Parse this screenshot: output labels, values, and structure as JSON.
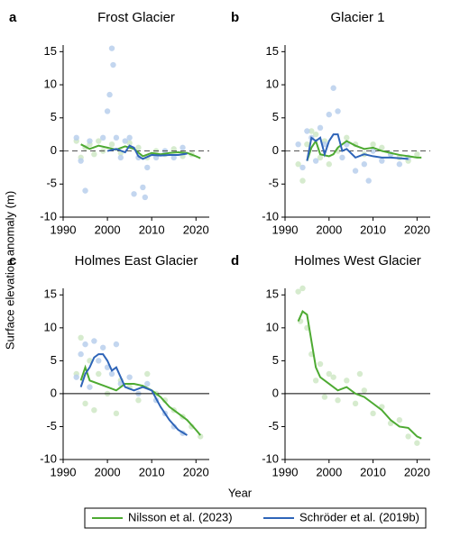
{
  "ylabel": "Surface elevation anomaly (m)",
  "xlabel": "Year",
  "chart_data": [
    {
      "type": "line",
      "letter": "a",
      "title": "Frost Glacier",
      "xlim": [
        1990,
        2023
      ],
      "ylim": [
        -10,
        16
      ],
      "xticks": [
        1990,
        2000,
        2010,
        2020
      ],
      "yticks": [
        -10,
        -5,
        0,
        5,
        10,
        15
      ],
      "zero_line": "dashed",
      "scatter": [
        {
          "color": "#cfe8c6",
          "x": [
            1993,
            1994,
            1995,
            1996,
            1997,
            1998,
            1999,
            2001,
            2003,
            2005,
            2007,
            2009,
            2011,
            2013,
            2015,
            2017,
            2019
          ],
          "values": [
            1.5,
            -1,
            0.5,
            1,
            -0.5,
            1.5,
            0,
            1,
            -0.3,
            1.2,
            0.5,
            -1,
            0,
            -0.5,
            0.3,
            -0.8,
            -0.5
          ]
        },
        {
          "color": "#b9cfec",
          "x": [
            1993,
            1994,
            1995,
            1996,
            1999,
            2000,
            2000.5,
            2001,
            2001.3,
            2002,
            2003,
            2004,
            2005,
            2006,
            2007,
            2008,
            2008.5,
            2009,
            2011,
            2013,
            2015,
            2017
          ],
          "values": [
            2,
            -1.5,
            -6,
            1.5,
            2,
            6,
            8.5,
            15.5,
            13,
            2,
            -1,
            1.5,
            2,
            -6.5,
            -1,
            -5.5,
            -7,
            -2.5,
            -1,
            0,
            -1,
            0.5
          ]
        }
      ],
      "series": [
        {
          "name": "Nilsson et al. (2023)",
          "color": "#4daa32",
          "x": [
            1994,
            1996,
            1998,
            2000,
            2002,
            2004,
            2006,
            2008,
            2010,
            2012,
            2014,
            2016,
            2018,
            2020,
            2021
          ],
          "values": [
            1,
            0.3,
            0.8,
            0.5,
            0.2,
            0.7,
            0.3,
            -0.8,
            -0.3,
            -0.5,
            -0.3,
            -0.2,
            -0.3,
            -0.8,
            -1.1
          ]
        },
        {
          "name": "Schröder et al. (2019b)",
          "color": "#2e64b8",
          "x": [
            2000,
            2002,
            2004,
            2005,
            2006,
            2007,
            2008,
            2010,
            2012,
            2014,
            2016,
            2018
          ],
          "values": [
            0,
            0.3,
            -0.2,
            0.8,
            0.5,
            -0.8,
            -1.2,
            -0.6,
            -0.7,
            -0.6,
            -0.6,
            -0.4
          ]
        }
      ]
    },
    {
      "type": "line",
      "letter": "b",
      "title": "Glacier 1",
      "xlim": [
        1990,
        2023
      ],
      "ylim": [
        -10,
        16
      ],
      "xticks": [
        1990,
        2000,
        2010,
        2020
      ],
      "yticks": [
        -10,
        -5,
        0,
        5,
        10,
        15
      ],
      "zero_line": "dashed",
      "scatter": [
        {
          "color": "#cfe8c6",
          "x": [
            1993,
            1994,
            1995,
            1996,
            1997,
            1998,
            1999,
            2000,
            2002,
            2004,
            2006,
            2008,
            2010,
            2012,
            2014,
            2016,
            2018,
            2020
          ],
          "values": [
            -2,
            -4.5,
            1,
            3,
            2.5,
            -1,
            1.5,
            -2,
            0,
            2,
            1,
            -0.5,
            1,
            0.5,
            -0.5,
            -1,
            -1.5,
            -0.5
          ]
        },
        {
          "color": "#b9cfec",
          "x": [
            1993,
            1994,
            1995,
            1996,
            1997,
            1998,
            1999,
            2000,
            2001,
            2002,
            2003,
            2004,
            2006,
            2008,
            2009,
            2010,
            2012,
            2014,
            2016,
            2018
          ],
          "values": [
            1,
            -2.5,
            3,
            2,
            -1.5,
            3.5,
            1,
            5.5,
            9.5,
            6,
            -1,
            1,
            -3,
            -2,
            -4.5,
            0,
            -1.5,
            -0.5,
            -2,
            -1
          ]
        }
      ],
      "series": [
        {
          "color": "#4daa32",
          "x": [
            1995,
            1996,
            1997,
            1998,
            2000,
            2001,
            2002,
            2004,
            2006,
            2008,
            2010,
            2012,
            2014,
            2016,
            2018,
            2020,
            2021
          ],
          "values": [
            -1.5,
            0.5,
            1.5,
            -0.5,
            -0.8,
            -0.5,
            0.5,
            1.5,
            0.8,
            0.3,
            0.5,
            0,
            -0.3,
            -0.6,
            -0.8,
            -1,
            -1
          ]
        },
        {
          "color": "#2e64b8",
          "x": [
            1995,
            1996,
            1997,
            1998,
            1999,
            2000,
            2001,
            2002,
            2003,
            2004,
            2006,
            2008,
            2010,
            2012,
            2014,
            2016,
            2018
          ],
          "values": [
            -1.5,
            2,
            1.5,
            2,
            -0.5,
            1.5,
            2.5,
            2.5,
            0,
            0.3,
            -1,
            -0.5,
            -0.8,
            -1,
            -1,
            -1.1,
            -1.2
          ]
        }
      ]
    },
    {
      "type": "line",
      "letter": "c",
      "title": "Holmes East Glacier",
      "xlim": [
        1990,
        2023
      ],
      "ylim": [
        -10,
        16
      ],
      "xticks": [
        1990,
        2000,
        2010,
        2020
      ],
      "yticks": [
        -10,
        -5,
        0,
        5,
        10,
        15
      ],
      "zero_line": "solid",
      "scatter": [
        {
          "color": "#cfe8c6",
          "x": [
            1993,
            1994,
            1995,
            1996,
            1997,
            1998,
            2000,
            2002,
            2003,
            2005,
            2007,
            2009,
            2011,
            2013,
            2015,
            2017,
            2019,
            2021
          ],
          "values": [
            3,
            8.5,
            -1.5,
            5,
            -2.5,
            3,
            0,
            -3,
            2,
            1,
            -1,
            3,
            0,
            -1,
            -2.5,
            -3.5,
            -5,
            -6.5
          ]
        },
        {
          "color": "#b9cfec",
          "x": [
            1993,
            1994,
            1995,
            1996,
            1997,
            1998,
            1999,
            2000,
            2001,
            2002,
            2003,
            2005,
            2007,
            2009,
            2011,
            2013,
            2015,
            2017
          ],
          "values": [
            2.5,
            6,
            7.5,
            1,
            8,
            5,
            7,
            4,
            3,
            7.5,
            1.5,
            2.5,
            0,
            1.5,
            -1,
            -3,
            -5,
            -6
          ]
        }
      ],
      "series": [
        {
          "color": "#4daa32",
          "x": [
            1994,
            1995,
            1996,
            1998,
            2000,
            2002,
            2004,
            2006,
            2008,
            2010,
            2012,
            2014,
            2016,
            2018,
            2020,
            2021
          ],
          "values": [
            2,
            4,
            2,
            1.5,
            1,
            0.5,
            1.5,
            1.5,
            1.2,
            0.5,
            -0.5,
            -2,
            -3,
            -4,
            -5.5,
            -6.3
          ]
        },
        {
          "color": "#2e64b8",
          "x": [
            1994,
            1995,
            1996,
            1997,
            1998,
            1999,
            2000,
            2001,
            2002,
            2003,
            2004,
            2006,
            2008,
            2010,
            2012,
            2014,
            2016,
            2018
          ],
          "values": [
            1,
            3,
            4,
            5.5,
            6,
            6,
            5,
            3.5,
            4,
            2.5,
            1,
            0.5,
            1,
            0.5,
            -2,
            -4,
            -5.5,
            -6.3
          ]
        }
      ]
    },
    {
      "type": "line",
      "letter": "d",
      "title": "Holmes West Glacier",
      "xlim": [
        1990,
        2023
      ],
      "ylim": [
        -10,
        16
      ],
      "xticks": [
        1990,
        2000,
        2010,
        2020
      ],
      "yticks": [
        -10,
        -5,
        0,
        5,
        10,
        15
      ],
      "zero_line": "solid",
      "scatter": [
        {
          "color": "#cfe8c6",
          "x": [
            1993,
            1993.5,
            1994,
            1995,
            1996,
            1997,
            1998,
            1999,
            2000,
            2001,
            2002,
            2004,
            2006,
            2007,
            2008,
            2010,
            2012,
            2014,
            2016,
            2018,
            2020
          ],
          "values": [
            15.5,
            11,
            16,
            10,
            6,
            2,
            4.5,
            -0.5,
            3,
            2.5,
            -1,
            2,
            -1.5,
            3,
            0.5,
            -3,
            -2,
            -4.5,
            -4,
            -6.5,
            -7.5
          ]
        }
      ],
      "series": [
        {
          "color": "#4daa32",
          "x": [
            1993,
            1994,
            1995,
            1996,
            1997,
            1998,
            2000,
            2002,
            2004,
            2006,
            2008,
            2010,
            2012,
            2014,
            2016,
            2018,
            2020,
            2021
          ],
          "values": [
            11,
            12.5,
            12,
            8,
            4,
            2.5,
            1.5,
            0.5,
            1,
            0,
            -0.5,
            -1.5,
            -2.5,
            -4,
            -5,
            -5.2,
            -6.5,
            -6.8
          ]
        }
      ]
    }
  ]
}
